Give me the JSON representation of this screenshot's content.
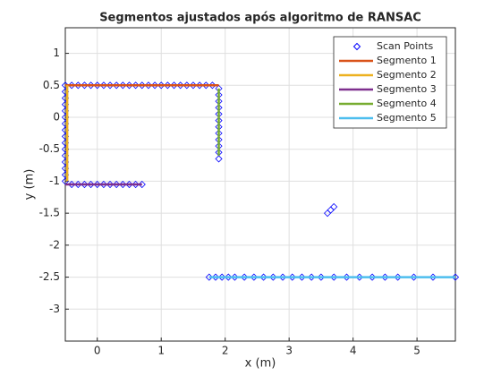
{
  "chart_data": {
    "type": "line",
    "title": "Segmentos ajustados após algoritmo de RANSAC",
    "xlabel": "x (m)",
    "ylabel": "y (m)",
    "xlim": [
      -0.5,
      5.6
    ],
    "ylim": [
      -3.5,
      1.4
    ],
    "xticks": [
      0,
      1,
      2,
      3,
      4,
      5
    ],
    "yticks": [
      1,
      0.5,
      0,
      -0.5,
      -1,
      -1.5,
      -2,
      -2.5,
      -3
    ],
    "grid": true,
    "legend": "northeast",
    "series": [
      {
        "name": "Scan Points",
        "color": "#0000ff",
        "marker": "diamond",
        "x": [
          -0.5,
          -0.4,
          -0.3,
          -0.2,
          -0.1,
          0,
          0.1,
          0.2,
          0.3,
          0.4,
          0.5,
          0.6,
          0.7,
          0.8,
          0.9,
          1,
          1.1,
          1.2,
          1.3,
          1.4,
          1.5,
          1.6,
          1.7,
          1.8,
          -0.5,
          -0.5,
          -0.5,
          -0.5,
          -0.5,
          -0.5,
          -0.5,
          -0.5,
          -0.5,
          -0.5,
          -0.5,
          -0.5,
          -0.5,
          -0.5,
          -0.5,
          -0.4,
          -0.3,
          -0.2,
          -0.1,
          0,
          0.1,
          0.2,
          0.3,
          0.4,
          0.5,
          0.6,
          0.7,
          1.9,
          1.9,
          1.9,
          1.9,
          1.9,
          1.9,
          1.9,
          1.9,
          1.9,
          1.9,
          1.9,
          1.9,
          3.6,
          3.65,
          3.7,
          1.75,
          1.85,
          1.95,
          2.05,
          2.15,
          2.3,
          2.45,
          2.6,
          2.75,
          2.9,
          3.05,
          3.2,
          3.35,
          3.5,
          3.7,
          3.9,
          4.1,
          4.3,
          4.5,
          4.7,
          4.95,
          5.25,
          5.6
        ],
        "y": [
          0.5,
          0.5,
          0.5,
          0.5,
          0.5,
          0.5,
          0.5,
          0.5,
          0.5,
          0.5,
          0.5,
          0.5,
          0.5,
          0.5,
          0.5,
          0.5,
          0.5,
          0.5,
          0.5,
          0.5,
          0.5,
          0.5,
          0.5,
          0.5,
          0.4,
          0.3,
          0.2,
          0.1,
          0,
          -0.1,
          -0.2,
          -0.3,
          -0.4,
          -0.5,
          -0.6,
          -0.7,
          -0.8,
          -0.9,
          -1,
          -1.05,
          -1.05,
          -1.05,
          -1.05,
          -1.05,
          -1.05,
          -1.05,
          -1.05,
          -1.05,
          -1.05,
          -1.05,
          -1.05,
          0.45,
          0.35,
          0.25,
          0.15,
          0.05,
          -0.05,
          -0.15,
          -0.25,
          -0.35,
          -0.45,
          -0.55,
          -0.65,
          -1.5,
          -1.45,
          -1.4,
          -2.5,
          -2.5,
          -2.5,
          -2.5,
          -2.5,
          -2.5,
          -2.5,
          -2.5,
          -2.5,
          -2.5,
          -2.5,
          -2.5,
          -2.5,
          -2.5,
          -2.5,
          -2.5,
          -2.5,
          -2.5,
          -2.5,
          -2.5,
          -2.5,
          -2.5,
          -2.5
        ]
      },
      {
        "name": "Segmento 1",
        "color": "#d95319",
        "x": [
          -0.5,
          1.9
        ],
        "y": [
          0.5,
          0.5
        ]
      },
      {
        "name": "Segmento 2",
        "color": "#edb120",
        "x": [
          -0.47,
          -0.47
        ],
        "y": [
          0.5,
          -1
        ]
      },
      {
        "name": "Segmento 3",
        "color": "#7e2f8e",
        "x": [
          -0.5,
          0.7
        ],
        "y": [
          -1.05,
          -1.05
        ]
      },
      {
        "name": "Segmento 4",
        "color": "#77ac30",
        "x": [
          1.9,
          1.9
        ],
        "y": [
          0.45,
          -0.6
        ]
      },
      {
        "name": "Segmento 5",
        "color": "#4dbeee",
        "x": [
          1.75,
          5.6
        ],
        "y": [
          -2.5,
          -2.5
        ]
      }
    ]
  }
}
